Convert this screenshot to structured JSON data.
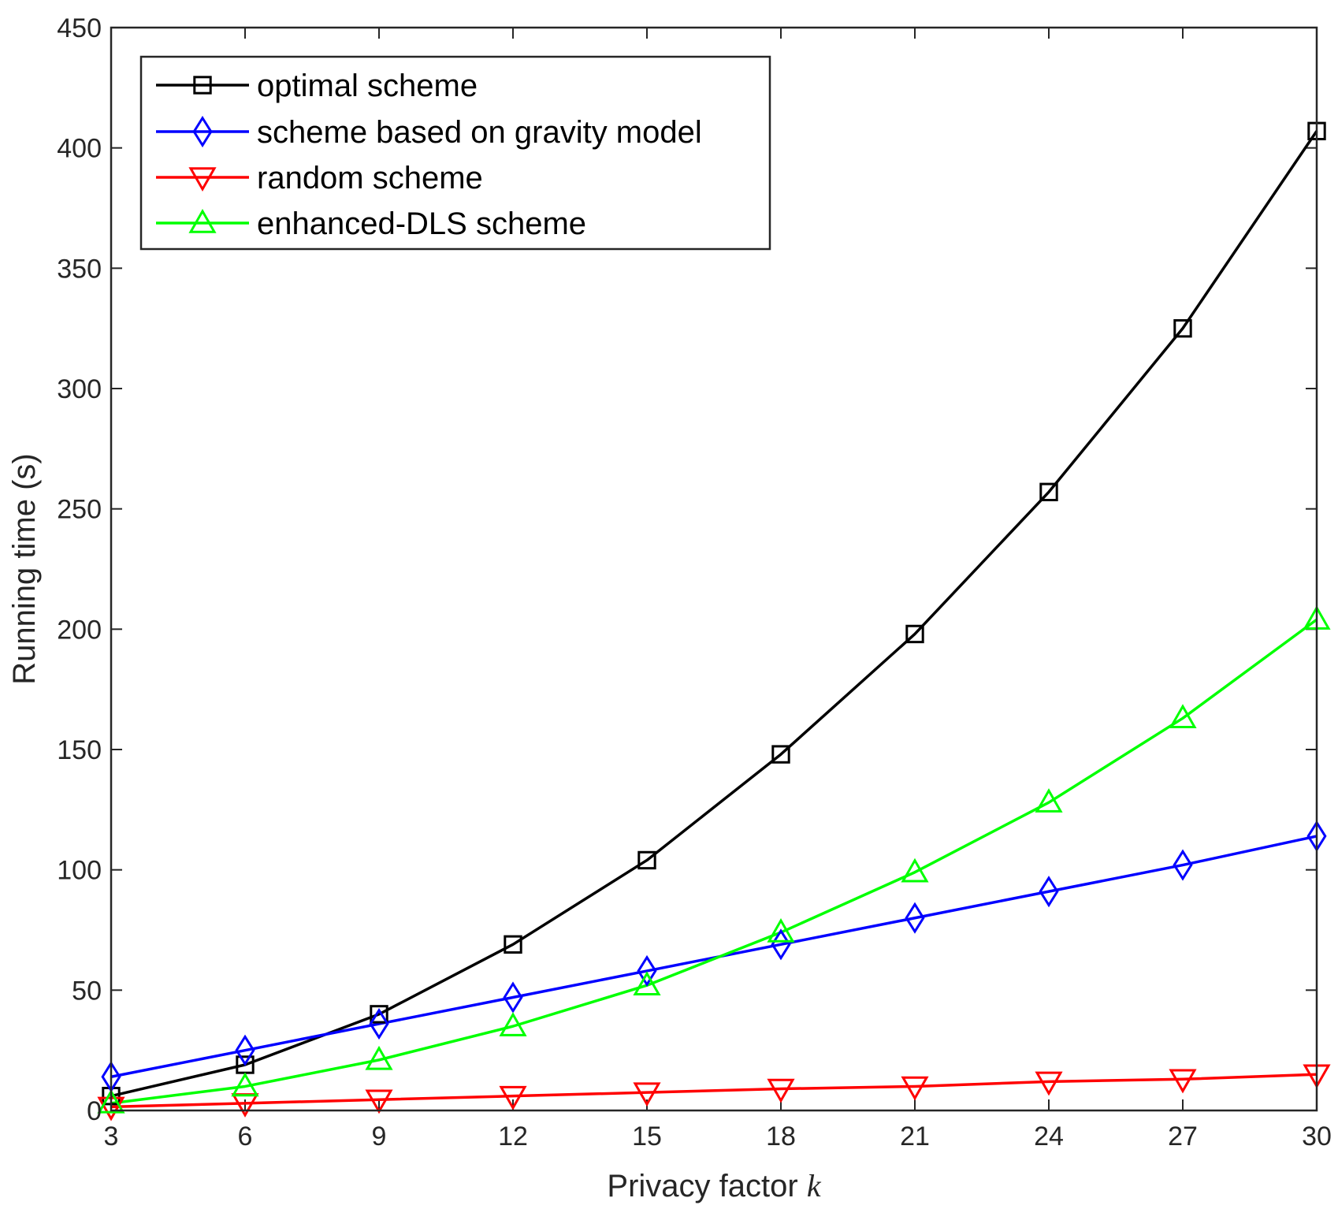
{
  "chart_data": {
    "type": "line",
    "title": "",
    "xlabel": "Privacy factor",
    "xlabel_var": "k",
    "ylabel": "Running time (s)",
    "x": [
      3,
      6,
      9,
      12,
      15,
      18,
      21,
      24,
      27,
      30
    ],
    "xlim": [
      3,
      30
    ],
    "ylim": [
      0,
      450
    ],
    "xticks": [
      3,
      6,
      9,
      12,
      15,
      18,
      21,
      24,
      27,
      30
    ],
    "yticks": [
      0,
      50,
      100,
      150,
      200,
      250,
      300,
      350,
      400,
      450
    ],
    "grid": false,
    "legend_position": "top-left",
    "series": [
      {
        "name": "optimal scheme",
        "color": "#000000",
        "marker": "square",
        "values": [
          6,
          19,
          40,
          69,
          104,
          148,
          198,
          257,
          325,
          407
        ]
      },
      {
        "name": "scheme based on gravity model",
        "color": "#0000ff",
        "marker": "diamond",
        "values": [
          14,
          25,
          36,
          47,
          58,
          69,
          80,
          91,
          102,
          114
        ]
      },
      {
        "name": "random scheme",
        "color": "#ff0000",
        "marker": "triangle-down",
        "values": [
          1.5,
          3,
          4.5,
          6,
          7.5,
          9,
          10,
          12,
          13,
          15
        ]
      },
      {
        "name": "enhanced-DLS scheme",
        "color": "#00ff00",
        "marker": "triangle-up",
        "values": [
          3,
          10,
          21,
          35,
          52,
          74,
          99,
          128,
          163,
          204
        ]
      }
    ]
  }
}
